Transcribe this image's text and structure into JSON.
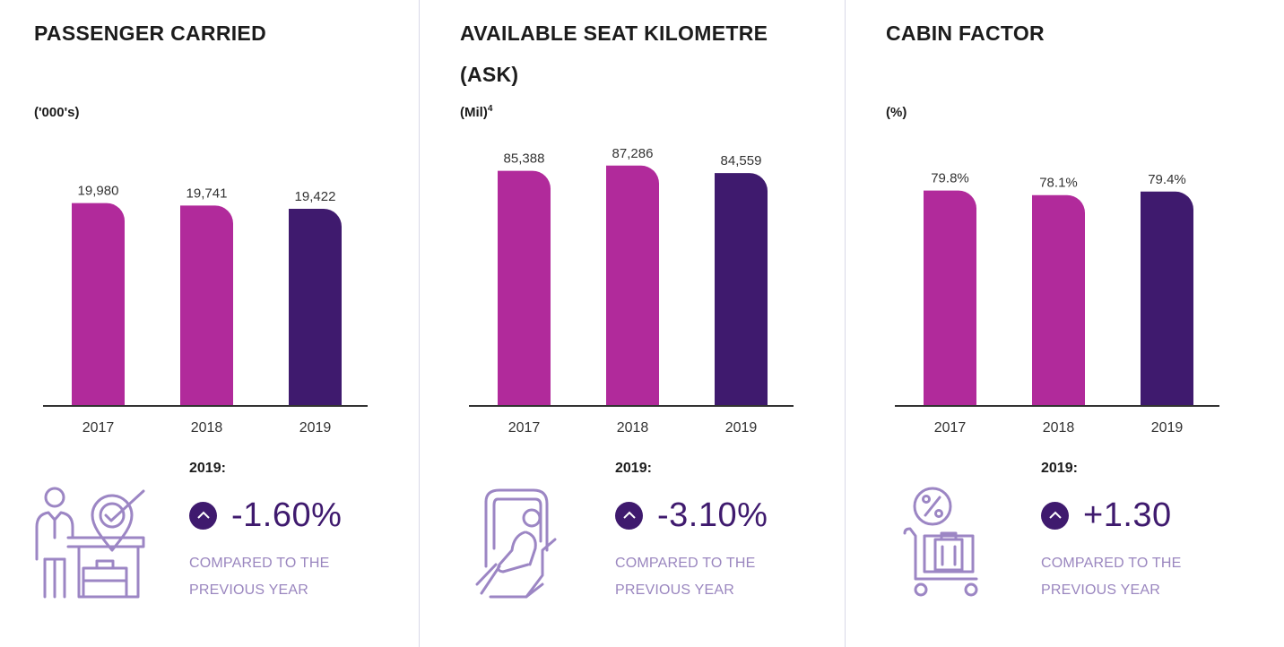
{
  "colors": {
    "past": "#b12a9b",
    "current": "#3f1a6e",
    "icon": "#9c86c4",
    "arrow": "#3f1a6e"
  },
  "panels": [
    {
      "title": "PASSENGER CARRIED",
      "unit": "('000's)",
      "unit_sup": "",
      "summary_year": "2019:",
      "change": "-1.60%",
      "compare_line1": "COMPARED TO THE",
      "compare_line2": "PREVIOUS YEAR",
      "icon": "passenger-checkin-icon"
    },
    {
      "title": "AVAILABLE SEAT KILOMETRE (ASK)",
      "unit": "(Mil)",
      "unit_sup": "4",
      "summary_year": "2019:",
      "change": "-3.10%",
      "compare_line1": "COMPARED TO THE",
      "compare_line2": "PREVIOUS YEAR",
      "icon": "seated-passenger-icon"
    },
    {
      "title": "CABIN FACTOR",
      "unit": "(%)",
      "unit_sup": "",
      "summary_year": "2019:",
      "change": "+1.30",
      "compare_line1": "COMPARED TO THE",
      "compare_line2": "PREVIOUS YEAR",
      "icon": "luggage-cart-percent-icon"
    }
  ],
  "chart_data": [
    {
      "type": "bar",
      "title": "PASSENGER CARRIED",
      "ylabel": "('000's)",
      "categories": [
        "2017",
        "2018",
        "2019"
      ],
      "values": [
        19980,
        19741,
        19422
      ],
      "labels": [
        "19,980",
        "19,741",
        "19,422"
      ],
      "ylim": [
        0,
        26600
      ],
      "grid": false
    },
    {
      "type": "bar",
      "title": "AVAILABLE SEAT KILOMETRE (ASK)",
      "ylabel": "(Mil)4",
      "categories": [
        "2017",
        "2018",
        "2019"
      ],
      "values": [
        85388,
        87286,
        84559
      ],
      "labels": [
        "85,388",
        "87,286",
        "84,559"
      ],
      "ylim": [
        0,
        98000
      ],
      "grid": false
    },
    {
      "type": "bar",
      "title": "CABIN FACTOR",
      "ylabel": "(%)",
      "categories": [
        "2017",
        "2018",
        "2019"
      ],
      "values": [
        79.8,
        78.1,
        79.4
      ],
      "labels": [
        "79.8%",
        "78.1%",
        "79.4%"
      ],
      "ylim": [
        0,
        100
      ],
      "grid": false
    }
  ]
}
